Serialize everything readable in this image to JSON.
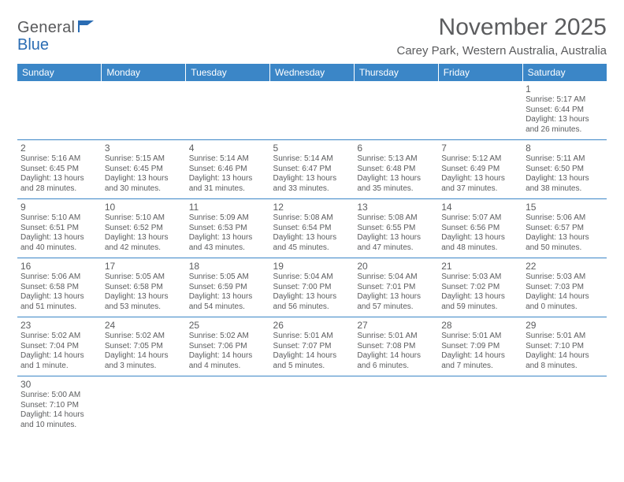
{
  "brand": {
    "part1": "General",
    "part2": "Blue"
  },
  "title": "November 2025",
  "location": "Carey Park, Western Australia, Australia",
  "colors": {
    "header_bg": "#3b86c7",
    "header_text": "#ffffff",
    "text": "#5b5c5e",
    "rule": "#3b86c7",
    "brand_gray": "#58595b",
    "brand_blue": "#2a6cb3"
  },
  "fonts": {
    "title_size": 30,
    "location_size": 15,
    "dayhead_size": 12,
    "daynum_size": 12,
    "info_size": 10
  },
  "dayNames": [
    "Sunday",
    "Monday",
    "Tuesday",
    "Wednesday",
    "Thursday",
    "Friday",
    "Saturday"
  ],
  "weeks": [
    [
      null,
      null,
      null,
      null,
      null,
      null,
      {
        "n": "1",
        "sr": "Sunrise: 5:17 AM",
        "ss": "Sunset: 6:44 PM",
        "dl": "Daylight: 13 hours and 26 minutes."
      }
    ],
    [
      {
        "n": "2",
        "sr": "Sunrise: 5:16 AM",
        "ss": "Sunset: 6:45 PM",
        "dl": "Daylight: 13 hours and 28 minutes."
      },
      {
        "n": "3",
        "sr": "Sunrise: 5:15 AM",
        "ss": "Sunset: 6:45 PM",
        "dl": "Daylight: 13 hours and 30 minutes."
      },
      {
        "n": "4",
        "sr": "Sunrise: 5:14 AM",
        "ss": "Sunset: 6:46 PM",
        "dl": "Daylight: 13 hours and 31 minutes."
      },
      {
        "n": "5",
        "sr": "Sunrise: 5:14 AM",
        "ss": "Sunset: 6:47 PM",
        "dl": "Daylight: 13 hours and 33 minutes."
      },
      {
        "n": "6",
        "sr": "Sunrise: 5:13 AM",
        "ss": "Sunset: 6:48 PM",
        "dl": "Daylight: 13 hours and 35 minutes."
      },
      {
        "n": "7",
        "sr": "Sunrise: 5:12 AM",
        "ss": "Sunset: 6:49 PM",
        "dl": "Daylight: 13 hours and 37 minutes."
      },
      {
        "n": "8",
        "sr": "Sunrise: 5:11 AM",
        "ss": "Sunset: 6:50 PM",
        "dl": "Daylight: 13 hours and 38 minutes."
      }
    ],
    [
      {
        "n": "9",
        "sr": "Sunrise: 5:10 AM",
        "ss": "Sunset: 6:51 PM",
        "dl": "Daylight: 13 hours and 40 minutes."
      },
      {
        "n": "10",
        "sr": "Sunrise: 5:10 AM",
        "ss": "Sunset: 6:52 PM",
        "dl": "Daylight: 13 hours and 42 minutes."
      },
      {
        "n": "11",
        "sr": "Sunrise: 5:09 AM",
        "ss": "Sunset: 6:53 PM",
        "dl": "Daylight: 13 hours and 43 minutes."
      },
      {
        "n": "12",
        "sr": "Sunrise: 5:08 AM",
        "ss": "Sunset: 6:54 PM",
        "dl": "Daylight: 13 hours and 45 minutes."
      },
      {
        "n": "13",
        "sr": "Sunrise: 5:08 AM",
        "ss": "Sunset: 6:55 PM",
        "dl": "Daylight: 13 hours and 47 minutes."
      },
      {
        "n": "14",
        "sr": "Sunrise: 5:07 AM",
        "ss": "Sunset: 6:56 PM",
        "dl": "Daylight: 13 hours and 48 minutes."
      },
      {
        "n": "15",
        "sr": "Sunrise: 5:06 AM",
        "ss": "Sunset: 6:57 PM",
        "dl": "Daylight: 13 hours and 50 minutes."
      }
    ],
    [
      {
        "n": "16",
        "sr": "Sunrise: 5:06 AM",
        "ss": "Sunset: 6:58 PM",
        "dl": "Daylight: 13 hours and 51 minutes."
      },
      {
        "n": "17",
        "sr": "Sunrise: 5:05 AM",
        "ss": "Sunset: 6:58 PM",
        "dl": "Daylight: 13 hours and 53 minutes."
      },
      {
        "n": "18",
        "sr": "Sunrise: 5:05 AM",
        "ss": "Sunset: 6:59 PM",
        "dl": "Daylight: 13 hours and 54 minutes."
      },
      {
        "n": "19",
        "sr": "Sunrise: 5:04 AM",
        "ss": "Sunset: 7:00 PM",
        "dl": "Daylight: 13 hours and 56 minutes."
      },
      {
        "n": "20",
        "sr": "Sunrise: 5:04 AM",
        "ss": "Sunset: 7:01 PM",
        "dl": "Daylight: 13 hours and 57 minutes."
      },
      {
        "n": "21",
        "sr": "Sunrise: 5:03 AM",
        "ss": "Sunset: 7:02 PM",
        "dl": "Daylight: 13 hours and 59 minutes."
      },
      {
        "n": "22",
        "sr": "Sunrise: 5:03 AM",
        "ss": "Sunset: 7:03 PM",
        "dl": "Daylight: 14 hours and 0 minutes."
      }
    ],
    [
      {
        "n": "23",
        "sr": "Sunrise: 5:02 AM",
        "ss": "Sunset: 7:04 PM",
        "dl": "Daylight: 14 hours and 1 minute."
      },
      {
        "n": "24",
        "sr": "Sunrise: 5:02 AM",
        "ss": "Sunset: 7:05 PM",
        "dl": "Daylight: 14 hours and 3 minutes."
      },
      {
        "n": "25",
        "sr": "Sunrise: 5:02 AM",
        "ss": "Sunset: 7:06 PM",
        "dl": "Daylight: 14 hours and 4 minutes."
      },
      {
        "n": "26",
        "sr": "Sunrise: 5:01 AM",
        "ss": "Sunset: 7:07 PM",
        "dl": "Daylight: 14 hours and 5 minutes."
      },
      {
        "n": "27",
        "sr": "Sunrise: 5:01 AM",
        "ss": "Sunset: 7:08 PM",
        "dl": "Daylight: 14 hours and 6 minutes."
      },
      {
        "n": "28",
        "sr": "Sunrise: 5:01 AM",
        "ss": "Sunset: 7:09 PM",
        "dl": "Daylight: 14 hours and 7 minutes."
      },
      {
        "n": "29",
        "sr": "Sunrise: 5:01 AM",
        "ss": "Sunset: 7:10 PM",
        "dl": "Daylight: 14 hours and 8 minutes."
      }
    ],
    [
      {
        "n": "30",
        "sr": "Sunrise: 5:00 AM",
        "ss": "Sunset: 7:10 PM",
        "dl": "Daylight: 14 hours and 10 minutes."
      },
      null,
      null,
      null,
      null,
      null,
      null
    ]
  ]
}
